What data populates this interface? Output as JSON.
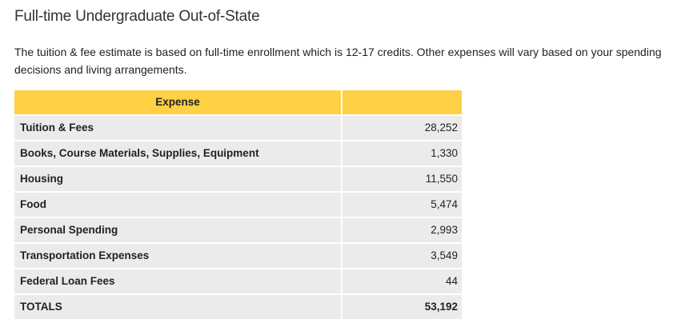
{
  "header": {
    "title": "Full-time Undergraduate Out-of-State"
  },
  "intro": "The tuition & fee estimate is based on full-time enrollment which is 12-17 credits. Other expenses will vary based on your spending decisions and living arrangements.",
  "table": {
    "header": [
      "Expense"
    ],
    "rows": [
      [
        "Tuition & Fees",
        "28,252"
      ],
      [
        "Books, Course Materials, Supplies, Equipment",
        "1,330"
      ],
      [
        "Housing",
        "11,550"
      ],
      [
        "Food",
        "5,474"
      ],
      [
        "Personal Spending",
        "2,993"
      ],
      [
        "Transportation Expenses",
        "3,549"
      ],
      [
        "Federal Loan Fees",
        "44"
      ],
      [
        "TOTALS",
        "53,192"
      ]
    ]
  }
}
